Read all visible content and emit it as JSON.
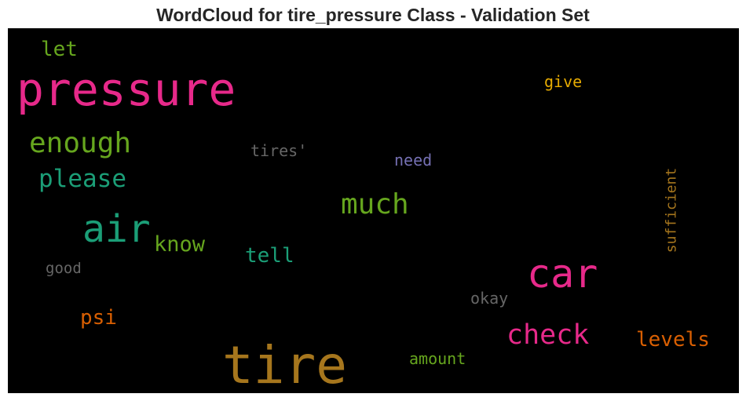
{
  "chart_data": {
    "type": "wordcloud",
    "title": "WordCloud for tire_pressure Class - Validation Set",
    "background": "#000000",
    "words": [
      {
        "text": "pressure",
        "color": "#e7298a",
        "weight": 1.0
      },
      {
        "text": "tire",
        "color": "#a6761d",
        "weight": 0.95
      },
      {
        "text": "car",
        "color": "#e7298a",
        "weight": 0.72
      },
      {
        "text": "air",
        "color": "#1b9e77",
        "weight": 0.7
      },
      {
        "text": "much",
        "color": "#66a61e",
        "weight": 0.52
      },
      {
        "text": "enough",
        "color": "#66a61e",
        "weight": 0.5
      },
      {
        "text": "check",
        "color": "#e7298a",
        "weight": 0.5
      },
      {
        "text": "please",
        "color": "#1b9e77",
        "weight": 0.45
      },
      {
        "text": "levels",
        "color": "#d95f02",
        "weight": 0.4
      },
      {
        "text": "know",
        "color": "#66a61e",
        "weight": 0.38
      },
      {
        "text": "tell",
        "color": "#1b9e77",
        "weight": 0.38
      },
      {
        "text": "psi",
        "color": "#d95f02",
        "weight": 0.38
      },
      {
        "text": "let",
        "color": "#66a61e",
        "weight": 0.38
      },
      {
        "text": "sufficient",
        "color": "#a6761d",
        "weight": 0.3
      },
      {
        "text": "tires'",
        "color": "#666666",
        "weight": 0.3
      },
      {
        "text": "need",
        "color": "#7570b3",
        "weight": 0.3
      },
      {
        "text": "give",
        "color": "#e6ab02",
        "weight": 0.3
      },
      {
        "text": "okay",
        "color": "#666666",
        "weight": 0.3
      },
      {
        "text": "amount",
        "color": "#66a61e",
        "weight": 0.3
      },
      {
        "text": "good",
        "color": "#666666",
        "weight": 0.28
      }
    ]
  }
}
